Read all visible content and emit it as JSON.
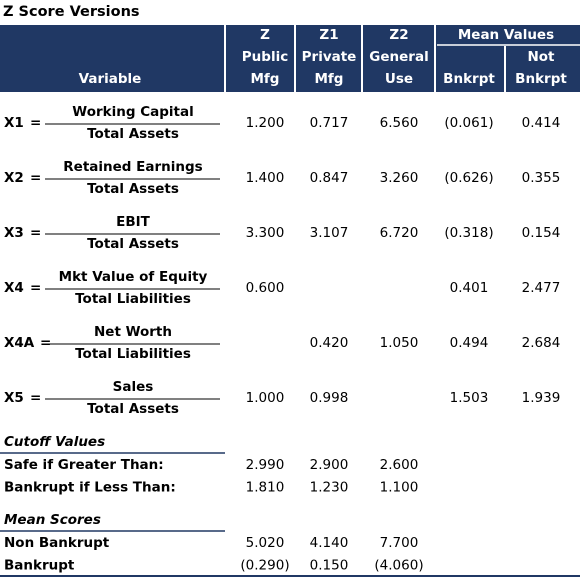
{
  "title": "Z Score Versions",
  "header": {
    "variable": "Variable",
    "columns": [
      {
        "lines": [
          "Z",
          "Public",
          "Mfg"
        ]
      },
      {
        "lines": [
          "Z1",
          "Private",
          "Mfg"
        ]
      },
      {
        "lines": [
          "Z2",
          "General",
          "Use"
        ]
      }
    ],
    "group": {
      "title": "Mean Values",
      "columns": [
        {
          "lines": [
            "Bnkrpt"
          ]
        },
        {
          "lines": [
            "Not",
            "Bnkrpt"
          ]
        }
      ]
    }
  },
  "variables": [
    {
      "label": "X1",
      "sign": "=",
      "numerator": "Working Capital",
      "denominator": "Total Assets",
      "values": [
        "1.200",
        "0.717",
        "6.560",
        "(0.061)",
        "0.414"
      ]
    },
    {
      "label": "X2",
      "sign": "=",
      "numerator": "Retained Earnings",
      "denominator": "Total Assets",
      "values": [
        "1.400",
        "0.847",
        "3.260",
        "(0.626)",
        "0.355"
      ]
    },
    {
      "label": "X3",
      "sign": "=",
      "numerator": "EBIT",
      "denominator": "Total Assets",
      "values": [
        "3.300",
        "3.107",
        "6.720",
        "(0.318)",
        "0.154"
      ]
    },
    {
      "label": "X4",
      "sign": "=",
      "numerator": "Mkt Value of Equity",
      "denominator": "Total Liabilities",
      "values": [
        "0.600",
        null,
        null,
        "0.401",
        "2.477"
      ]
    },
    {
      "label": "X4A",
      "sign": "=",
      "numerator": "Net Worth",
      "denominator": "Total Liabilities",
      "values": [
        null,
        "0.420",
        "1.050",
        "0.494",
        "2.684"
      ]
    },
    {
      "label": "X5",
      "sign": "=",
      "numerator": "Sales",
      "denominator": "Total Assets",
      "values": [
        "1.000",
        "0.998",
        null,
        "1.503",
        "1.939"
      ]
    }
  ],
  "sections": [
    {
      "title": "Cutoff Values",
      "rows": [
        {
          "label": "Safe if Greater Than:",
          "values": [
            "2.990",
            "2.900",
            "2.600"
          ]
        },
        {
          "label": "Bankrupt if Less Than:",
          "values": [
            "1.810",
            "1.230",
            "1.100"
          ]
        }
      ]
    },
    {
      "title": "Mean Scores",
      "rows": [
        {
          "label": "Non Bankrupt",
          "values": [
            "5.020",
            "4.140",
            "7.700"
          ]
        },
        {
          "label": "Bankrupt",
          "values": [
            "(0.290)",
            "0.150",
            "(4.060)"
          ]
        }
      ]
    }
  ]
}
